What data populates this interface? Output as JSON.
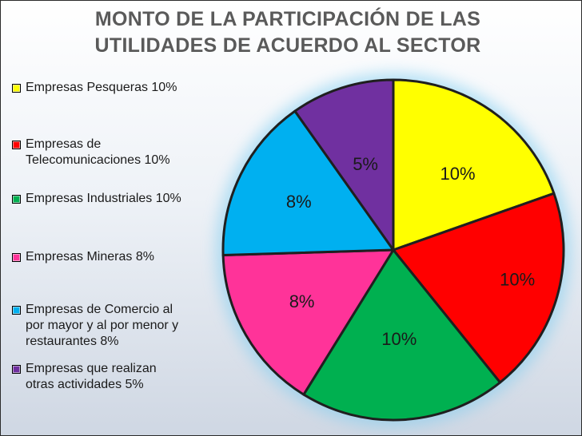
{
  "title": {
    "line1": "MONTO DE LA PARTICIPACIÓN DE LAS",
    "line2": "UTILIDADES DE ACUERDO AL SECTOR"
  },
  "legend": [
    {
      "text": "Empresas Pesqueras 10%",
      "color": "#ffff00"
    },
    {
      "text": "Empresas de\nTelecomunicaciones 10%",
      "color": "#ff0000"
    },
    {
      "text": "Empresas Industriales 10%",
      "color": "#00b050"
    },
    {
      "text": "Empresas Mineras 8%",
      "color": "#ff3399"
    },
    {
      "text": "Empresas de Comercio al\npor mayor y al por menor y\nrestaurantes 8%",
      "color": "#00b0f0"
    },
    {
      "text": "Empresas que realizan\notras actividades 5%",
      "color": "#7030a0"
    }
  ],
  "chart_data": {
    "type": "pie",
    "title": "MONTO DE LA PARTICIPACIÓN DE LAS UTILIDADES DE ACUERDO AL SECTOR",
    "categories": [
      "Empresas Pesqueras",
      "Empresas de Telecomunicaciones",
      "Empresas Industriales",
      "Empresas Mineras",
      "Empresas de Comercio al por mayor y al por menor y restaurantes",
      "Empresas que realizan otras actividades"
    ],
    "values": [
      10,
      10,
      10,
      8,
      8,
      5
    ],
    "labels": [
      "10%",
      "10%",
      "10%",
      "8%",
      "8%",
      "5%"
    ],
    "colors": [
      "#ffff00",
      "#ff0000",
      "#00b050",
      "#ff3399",
      "#00b0f0",
      "#7030a0"
    ],
    "legend_position": "left"
  }
}
